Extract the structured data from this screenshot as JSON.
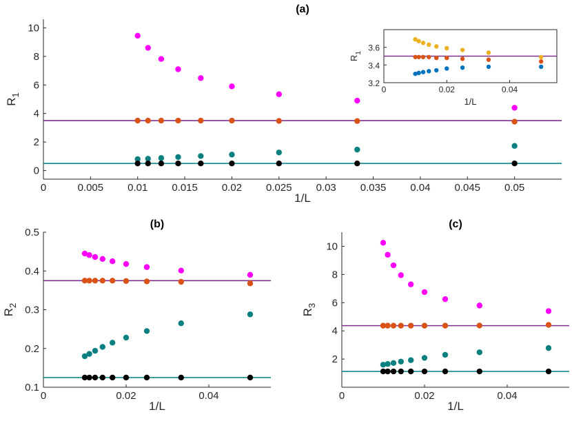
{
  "colors": {
    "magenta": "#ff00ff",
    "orange": "#d95319",
    "teal": "#0b8080",
    "black": "#000000",
    "purple": "#7e2f8e",
    "tealLine": "#138a8a",
    "gold": "#edb120",
    "blue": "#0072bd"
  },
  "chart_data": [
    {
      "id": "a",
      "type": "scatter",
      "title": "(a)",
      "xlabel": "1/L",
      "ylabel": "R",
      "ylabel_sub": "1",
      "xlim": [
        0,
        0.055
      ],
      "ylim": [
        -0.6,
        10.6
      ],
      "xticks": [
        0,
        0.005,
        0.01,
        0.015,
        0.02,
        0.025,
        0.03,
        0.035,
        0.04,
        0.045,
        0.05
      ],
      "xtick_labels": [
        "0",
        "0.005",
        "0.01",
        "0.015",
        "0.02",
        "0.025",
        "0.03",
        "0.035",
        "0.04",
        "0.045",
        "0.05"
      ],
      "yticks": [
        0,
        2,
        4,
        6,
        8,
        10
      ],
      "ytick_labels": [
        "0",
        "2",
        "4",
        "6",
        "8",
        "10"
      ],
      "x": [
        0.01,
        0.0111,
        0.0125,
        0.0143,
        0.0167,
        0.02,
        0.025,
        0.0333,
        0.05
      ],
      "series": [
        {
          "name": "magenta",
          "color": "magenta",
          "values": [
            9.45,
            8.6,
            7.82,
            7.1,
            6.48,
            5.9,
            5.35,
            4.9,
            4.4
          ]
        },
        {
          "name": "orange",
          "color": "orange",
          "values": [
            3.5,
            3.5,
            3.5,
            3.5,
            3.5,
            3.5,
            3.48,
            3.47,
            3.43
          ]
        },
        {
          "name": "teal",
          "color": "teal",
          "values": [
            0.8,
            0.83,
            0.88,
            0.95,
            1.02,
            1.12,
            1.27,
            1.47,
            1.73
          ]
        },
        {
          "name": "black",
          "color": "black",
          "values": [
            0.5,
            0.5,
            0.5,
            0.5,
            0.5,
            0.5,
            0.5,
            0.5,
            0.5
          ]
        }
      ],
      "hlines": [
        {
          "y": 3.5,
          "color": "purple"
        },
        {
          "y": 0.5,
          "color": "tealLine"
        }
      ]
    },
    {
      "id": "inset",
      "type": "scatter",
      "title": "",
      "xlabel": "1/L",
      "ylabel": "R",
      "ylabel_sub": "1",
      "xlim": [
        0,
        0.055
      ],
      "ylim": [
        3.2,
        3.8
      ],
      "xticks": [
        0,
        0.02,
        0.04
      ],
      "xtick_labels": [
        "0",
        "0.02",
        "0.04"
      ],
      "yticks": [
        3.2,
        3.4,
        3.6
      ],
      "ytick_labels": [
        "3.2",
        "3.4",
        "3.6"
      ],
      "x": [
        0.01,
        0.0111,
        0.0125,
        0.0143,
        0.0167,
        0.02,
        0.025,
        0.0333,
        0.05
      ],
      "series": [
        {
          "name": "gold",
          "color": "gold",
          "values": [
            3.69,
            3.67,
            3.65,
            3.63,
            3.61,
            3.59,
            3.57,
            3.54,
            3.49
          ]
        },
        {
          "name": "orange",
          "color": "orange",
          "values": [
            3.49,
            3.49,
            3.49,
            3.49,
            3.48,
            3.48,
            3.47,
            3.46,
            3.44
          ]
        },
        {
          "name": "blue",
          "color": "blue",
          "values": [
            3.3,
            3.31,
            3.32,
            3.33,
            3.34,
            3.36,
            3.37,
            3.38,
            3.38
          ]
        }
      ],
      "hlines": [
        {
          "y": 3.5,
          "color": "purple"
        }
      ]
    },
    {
      "id": "b",
      "type": "scatter",
      "title": "(b)",
      "xlabel": "1/L",
      "ylabel": "R",
      "ylabel_sub": "2",
      "xlim": [
        0,
        0.055
      ],
      "ylim": [
        0.1,
        0.5
      ],
      "xticks": [
        0,
        0.02,
        0.04
      ],
      "xtick_labels": [
        "0",
        "0.02",
        "0.04"
      ],
      "yticks": [
        0.1,
        0.2,
        0.3,
        0.4,
        0.5
      ],
      "ytick_labels": [
        "0.1",
        "0.2",
        "0.3",
        "0.4",
        "0.5"
      ],
      "x": [
        0.01,
        0.0111,
        0.0125,
        0.0143,
        0.0167,
        0.02,
        0.025,
        0.0333,
        0.05
      ],
      "series": [
        {
          "name": "magenta",
          "color": "magenta",
          "values": [
            0.445,
            0.441,
            0.436,
            0.431,
            0.425,
            0.418,
            0.41,
            0.401,
            0.39
          ]
        },
        {
          "name": "orange",
          "color": "orange",
          "values": [
            0.375,
            0.375,
            0.375,
            0.375,
            0.375,
            0.374,
            0.373,
            0.372,
            0.368
          ]
        },
        {
          "name": "teal",
          "color": "teal",
          "values": [
            0.18,
            0.186,
            0.194,
            0.204,
            0.215,
            0.228,
            0.245,
            0.265,
            0.288
          ]
        },
        {
          "name": "black",
          "color": "black",
          "values": [
            0.125,
            0.125,
            0.125,
            0.125,
            0.125,
            0.125,
            0.125,
            0.125,
            0.125
          ]
        }
      ],
      "hlines": [
        {
          "y": 0.375,
          "color": "purple"
        },
        {
          "y": 0.125,
          "color": "tealLine"
        }
      ]
    },
    {
      "id": "c",
      "type": "scatter",
      "title": "(c)",
      "xlabel": "1/L",
      "ylabel": "R",
      "ylabel_sub": "3",
      "xlim": [
        0,
        0.055
      ],
      "ylim": [
        0,
        11
      ],
      "xticks": [
        0,
        0.02,
        0.04
      ],
      "xtick_labels": [
        "0",
        "0.02",
        "0.04"
      ],
      "yticks": [
        2,
        4,
        6,
        8,
        10
      ],
      "ytick_labels": [
        "2",
        "4",
        "6",
        "8",
        "10"
      ],
      "x": [
        0.01,
        0.0111,
        0.0125,
        0.0143,
        0.0167,
        0.02,
        0.025,
        0.0333,
        0.05
      ],
      "series": [
        {
          "name": "magenta",
          "color": "magenta",
          "values": [
            10.25,
            9.4,
            8.65,
            7.95,
            7.3,
            6.75,
            6.25,
            5.8,
            5.4
          ]
        },
        {
          "name": "orange",
          "color": "orange",
          "values": [
            4.37,
            4.37,
            4.37,
            4.37,
            4.37,
            4.37,
            4.37,
            4.38,
            4.42
          ]
        },
        {
          "name": "teal",
          "color": "teal",
          "values": [
            1.6,
            1.65,
            1.72,
            1.82,
            1.92,
            2.08,
            2.3,
            2.48,
            2.78
          ]
        },
        {
          "name": "black",
          "color": "black",
          "values": [
            1.12,
            1.12,
            1.12,
            1.12,
            1.12,
            1.12,
            1.12,
            1.12,
            1.12
          ]
        }
      ],
      "hlines": [
        {
          "y": 4.37,
          "color": "purple"
        },
        {
          "y": 1.12,
          "color": "tealLine"
        }
      ]
    }
  ]
}
